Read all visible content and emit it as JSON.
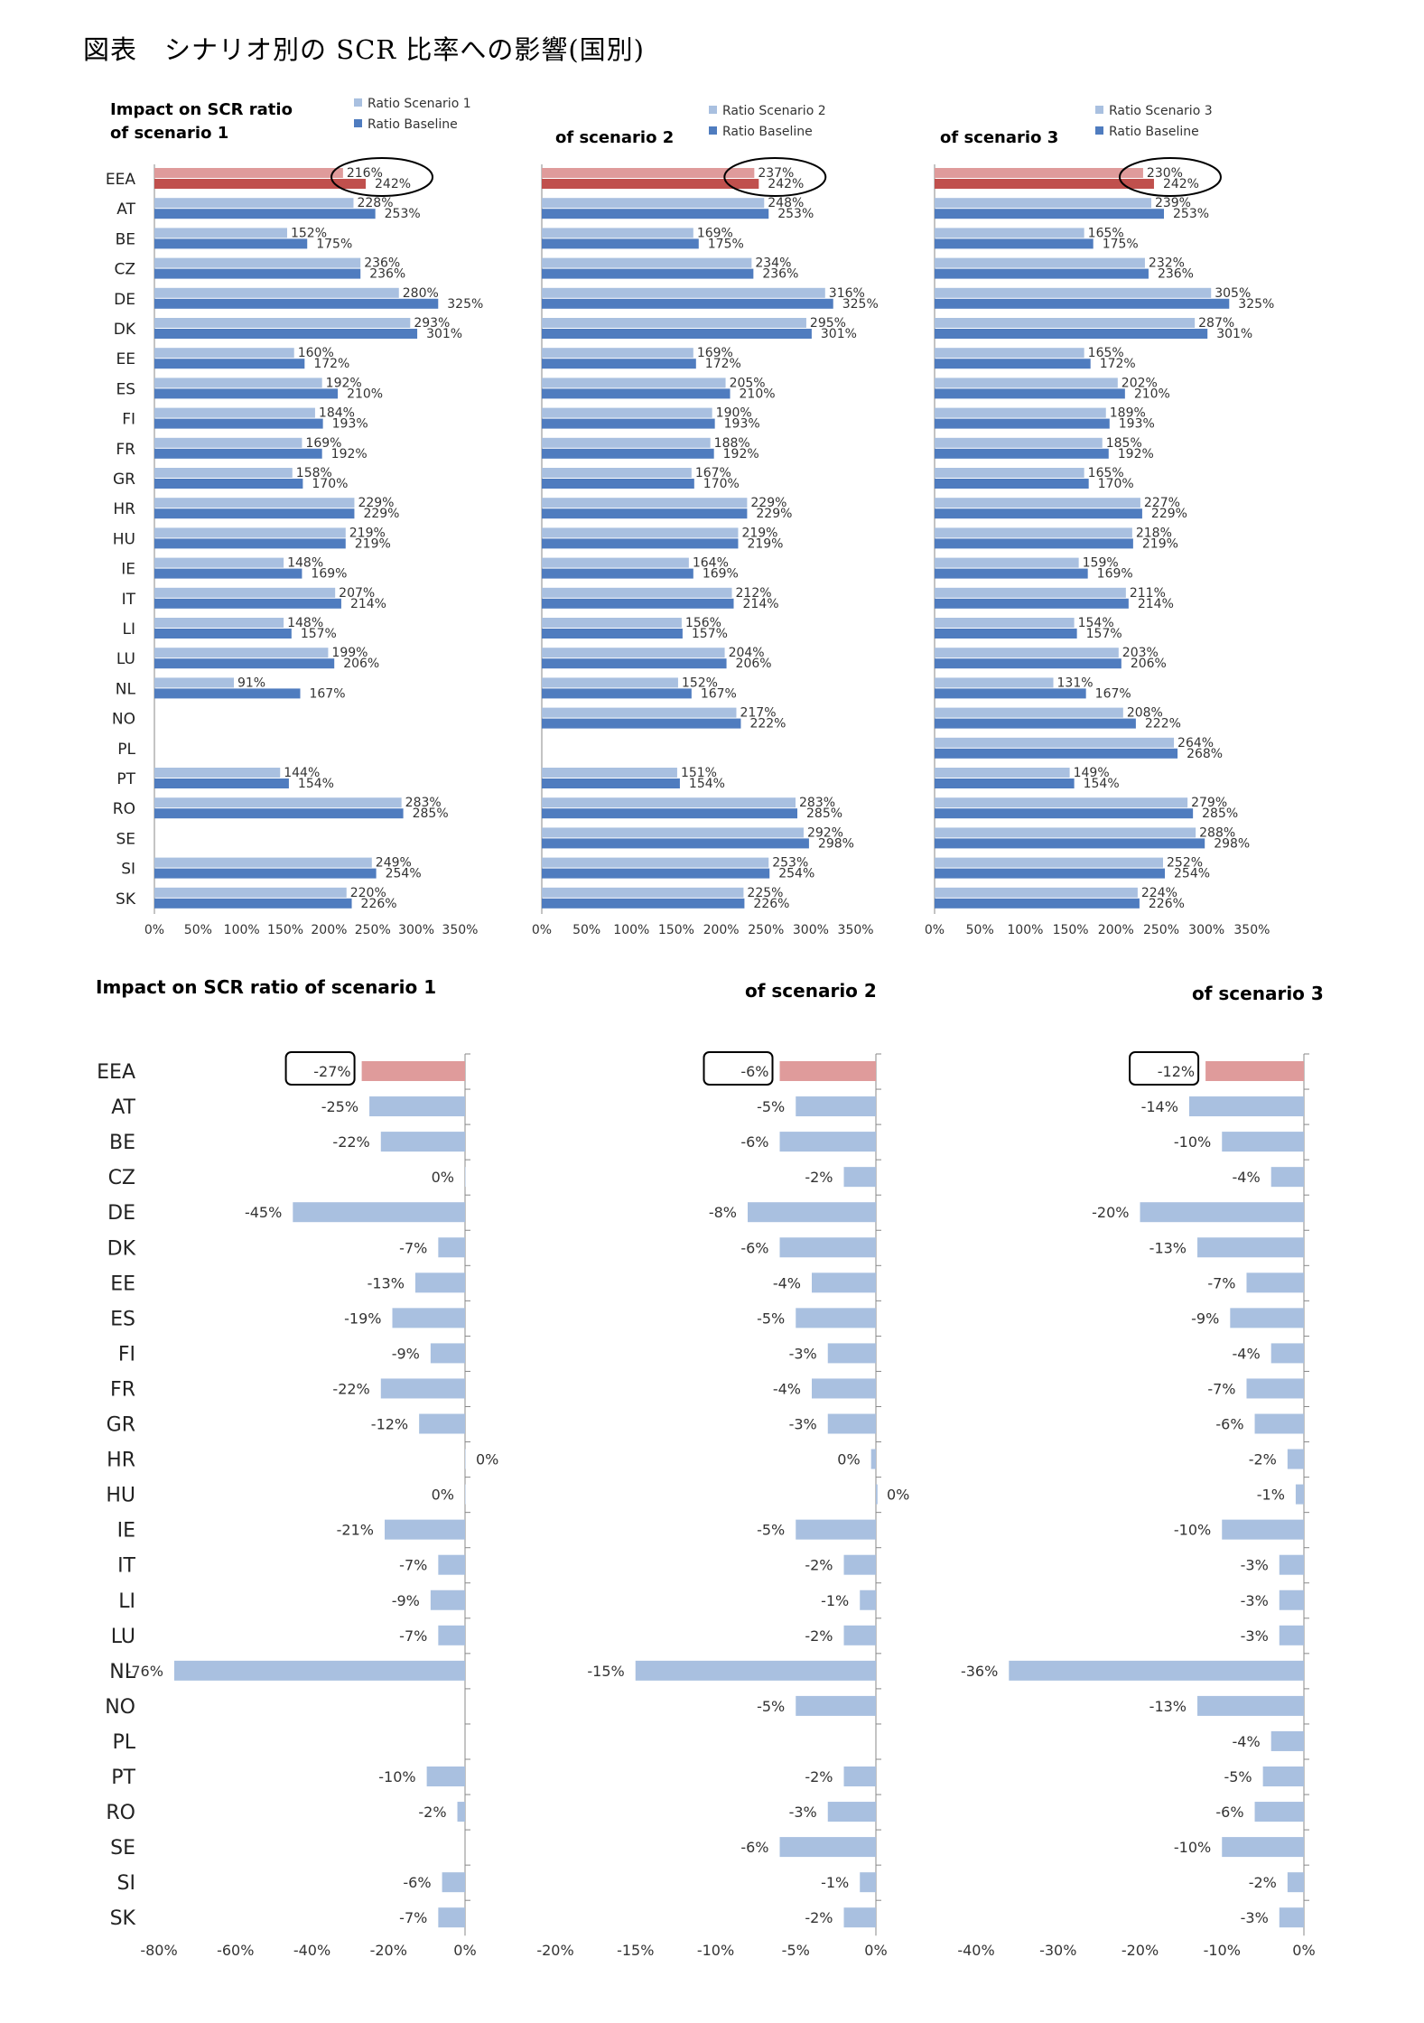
{
  "figure_title": "図表　シナリオ別の SCR 比率への影響(国別)",
  "colors": {
    "scenario_bar": "#a9c0e0",
    "baseline_bar": "#4f7cbf",
    "eea_scenario_bar": "#df9b9b",
    "eea_baseline_bar": "#c0504d",
    "impact_bar": "#a9c0e0",
    "impact_eea_bar": "#df9b9b"
  },
  "chart_data": [
    {
      "type": "bar",
      "orientation": "horizontal",
      "title_line1": "Impact on SCR ratio",
      "title_line2": "of scenario 1",
      "legend": [
        "Ratio Scenario 1",
        "Ratio Baseline"
      ],
      "xlim": [
        0,
        350
      ],
      "x_ticks": [
        "0%",
        "50%",
        "100%",
        "150%",
        "200%",
        "250%",
        "300%",
        "350%"
      ],
      "categories": [
        "EEA",
        "AT",
        "BE",
        "CZ",
        "DE",
        "DK",
        "EE",
        "ES",
        "FI",
        "FR",
        "GR",
        "HR",
        "HU",
        "IE",
        "IT",
        "LI",
        "LU",
        "NL",
        "NO",
        "PL",
        "PT",
        "RO",
        "SE",
        "SI",
        "SK"
      ],
      "series": [
        {
          "name": "Ratio Scenario 1",
          "values": [
            216,
            228,
            152,
            236,
            280,
            293,
            160,
            192,
            184,
            169,
            158,
            229,
            219,
            148,
            207,
            148,
            199,
            91,
            null,
            null,
            144,
            283,
            null,
            249,
            220
          ],
          "labels": [
            "216%",
            "228%",
            "152%",
            "236%",
            "280%",
            "293%",
            "160%",
            "192%",
            "184%",
            "169%",
            "158%",
            "229%",
            "219%",
            "148%",
            "207%",
            "148%",
            "199%",
            "91%",
            null,
            null,
            "144%",
            "283%",
            null,
            "249%",
            "220%"
          ]
        },
        {
          "name": "Ratio Baseline",
          "values": [
            242,
            253,
            175,
            236,
            325,
            301,
            172,
            210,
            193,
            192,
            170,
            229,
            219,
            169,
            214,
            157,
            206,
            167,
            null,
            null,
            154,
            285,
            null,
            254,
            226
          ],
          "labels": [
            "242%",
            "253%",
            "175%",
            "236%",
            "325%",
            "301%",
            "172%",
            "210%",
            "193%",
            "192%",
            "170%",
            "229%",
            "219%",
            "169%",
            "214%",
            "157%",
            "206%",
            "167%",
            null,
            null,
            "154%",
            "285%",
            null,
            "254%",
            "226%"
          ]
        }
      ],
      "highlight": "EEA"
    },
    {
      "type": "bar",
      "orientation": "horizontal",
      "title_line1": "",
      "title_line2": "of scenario 2",
      "legend": [
        "Ratio Scenario 2",
        "Ratio Baseline"
      ],
      "xlim": [
        0,
        350
      ],
      "x_ticks": [
        "0%",
        "50%",
        "100%",
        "150%",
        "200%",
        "250%",
        "300%",
        "350%"
      ],
      "categories": [
        "EEA",
        "AT",
        "BE",
        "CZ",
        "DE",
        "DK",
        "EE",
        "ES",
        "FI",
        "FR",
        "GR",
        "HR",
        "HU",
        "IE",
        "IT",
        "LI",
        "LU",
        "NL",
        "NO",
        "PL",
        "PT",
        "RO",
        "SE",
        "SI",
        "SK"
      ],
      "series": [
        {
          "name": "Ratio Scenario 2",
          "values": [
            237,
            248,
            169,
            234,
            316,
            295,
            169,
            205,
            190,
            188,
            167,
            229,
            219,
            164,
            212,
            156,
            204,
            152,
            217,
            null,
            151,
            283,
            292,
            253,
            225
          ],
          "labels": [
            "237%",
            "248%",
            "169%",
            "234%",
            "316%",
            "295%",
            "169%",
            "205%",
            "190%",
            "188%",
            "167%",
            "229%",
            "219%",
            "164%",
            "212%",
            "156%",
            "204%",
            "152%",
            "217%",
            null,
            "151%",
            "283%",
            "292%",
            "253%",
            "225%"
          ]
        },
        {
          "name": "Ratio Baseline",
          "values": [
            242,
            253,
            175,
            236,
            325,
            301,
            172,
            210,
            193,
            192,
            170,
            229,
            219,
            169,
            214,
            157,
            206,
            167,
            222,
            null,
            154,
            285,
            298,
            254,
            226
          ],
          "labels": [
            "242%",
            "253%",
            "175%",
            "236%",
            "325%",
            "301%",
            "172%",
            "210%",
            "193%",
            "192%",
            "170%",
            "229%",
            "219%",
            "169%",
            "214%",
            "157%",
            "206%",
            "167%",
            "222%",
            null,
            "154%",
            "285%",
            "298%",
            "254%",
            "226%"
          ]
        }
      ],
      "highlight": "EEA"
    },
    {
      "type": "bar",
      "orientation": "horizontal",
      "title_line1": "",
      "title_line2": "of scenario 3",
      "legend": [
        "Ratio Scenario 3",
        "Ratio Baseline"
      ],
      "xlim": [
        0,
        350
      ],
      "x_ticks": [
        "0%",
        "50%",
        "100%",
        "150%",
        "200%",
        "250%",
        "300%",
        "350%"
      ],
      "categories": [
        "EEA",
        "AT",
        "BE",
        "CZ",
        "DE",
        "DK",
        "EE",
        "ES",
        "FI",
        "FR",
        "GR",
        "HR",
        "HU",
        "IE",
        "IT",
        "LI",
        "LU",
        "NL",
        "NO",
        "PL",
        "PT",
        "RO",
        "SE",
        "SI",
        "SK"
      ],
      "series": [
        {
          "name": "Ratio Scenario 3",
          "values": [
            230,
            239,
            165,
            232,
            305,
            287,
            165,
            202,
            189,
            185,
            165,
            227,
            218,
            159,
            211,
            154,
            203,
            131,
            208,
            264,
            149,
            279,
            288,
            252,
            224
          ],
          "labels": [
            "230%",
            "239%",
            "165%",
            "232%",
            "305%",
            "287%",
            "165%",
            "202%",
            "189%",
            "185%",
            "165%",
            "227%",
            "218%",
            "159%",
            "211%",
            "154%",
            "203%",
            "131%",
            "208%",
            "264%",
            "149%",
            "279%",
            "288%",
            "252%",
            "224%"
          ]
        },
        {
          "name": "Ratio Baseline",
          "values": [
            242,
            253,
            175,
            236,
            325,
            301,
            172,
            210,
            193,
            192,
            170,
            229,
            219,
            169,
            214,
            157,
            206,
            167,
            222,
            268,
            154,
            285,
            298,
            254,
            226
          ],
          "labels": [
            "242%",
            "253%",
            "175%",
            "236%",
            "325%",
            "301%",
            "172%",
            "210%",
            "193%",
            "192%",
            "170%",
            "229%",
            "219%",
            "169%",
            "214%",
            "157%",
            "206%",
            "167%",
            "222%",
            "268%",
            "154%",
            "285%",
            "298%",
            "254%",
            "226%"
          ]
        }
      ],
      "highlight": "EEA"
    },
    {
      "type": "bar",
      "orientation": "horizontal",
      "title": "Impact on SCR ratio of scenario 1",
      "xlim": [
        -80,
        0
      ],
      "x_ticks": [
        "-80%",
        "-60%",
        "-40%",
        "-20%",
        "0%"
      ],
      "categories": [
        "EEA",
        "AT",
        "BE",
        "CZ",
        "DE",
        "DK",
        "EE",
        "ES",
        "FI",
        "FR",
        "GR",
        "HR",
        "HU",
        "IE",
        "IT",
        "LI",
        "LU",
        "NL",
        "NO",
        "PL",
        "PT",
        "RO",
        "SE",
        "SI",
        "SK"
      ],
      "values": [
        -27,
        -25,
        -22,
        0,
        -45,
        -7,
        -13,
        -19,
        -9,
        -22,
        -12,
        0,
        0,
        -21,
        -7,
        -9,
        -7,
        -76,
        null,
        null,
        -10,
        -2,
        null,
        -6,
        -7
      ],
      "labels": [
        "-27%",
        "-25%",
        "-22%",
        "0%",
        "-45%",
        "-7%",
        "-13%",
        "-19%",
        "-9%",
        "-22%",
        "-12%",
        "0%",
        "0%",
        "-21%",
        "-7%",
        "-9%",
        "-7%",
        "-76%",
        null,
        null,
        "-10%",
        "-2%",
        null,
        "-6%",
        "-7%"
      ],
      "highlight": "EEA"
    },
    {
      "type": "bar",
      "orientation": "horizontal",
      "title": "of scenario 2",
      "xlim": [
        -20,
        0
      ],
      "x_ticks": [
        "-20%",
        "-15%",
        "-10%",
        "-5%",
        "0%"
      ],
      "categories": [
        "EEA",
        "AT",
        "BE",
        "CZ",
        "DE",
        "DK",
        "EE",
        "ES",
        "FI",
        "FR",
        "GR",
        "HR",
        "HU",
        "IE",
        "IT",
        "LI",
        "LU",
        "NL",
        "NO",
        "PL",
        "PT",
        "RO",
        "SE",
        "SI",
        "SK"
      ],
      "values": [
        -6,
        -5,
        -6,
        -2,
        -8,
        -6,
        -4,
        -5,
        -3,
        -4,
        -3,
        -0.3,
        0.1,
        -5,
        -2,
        -1,
        -2,
        -15,
        -5,
        null,
        -2,
        -3,
        -6,
        -1,
        -2
      ],
      "labels": [
        "-6%",
        "-5%",
        "-6%",
        "-2%",
        "-8%",
        "-6%",
        "-4%",
        "-5%",
        "-3%",
        "-4%",
        "-3%",
        "0%",
        "0%",
        "-5%",
        "-2%",
        "-1%",
        "-2%",
        "-15%",
        "-5%",
        null,
        "-2%",
        "-3%",
        "-6%",
        "-1%",
        "-2%"
      ],
      "highlight": "EEA"
    },
    {
      "type": "bar",
      "orientation": "horizontal",
      "title": "of scenario 3",
      "xlim": [
        -40,
        0
      ],
      "x_ticks": [
        "-40%",
        "-30%",
        "-20%",
        "-10%",
        "0%"
      ],
      "categories": [
        "EEA",
        "AT",
        "BE",
        "CZ",
        "DE",
        "DK",
        "EE",
        "ES",
        "FI",
        "FR",
        "GR",
        "HR",
        "HU",
        "IE",
        "IT",
        "LI",
        "LU",
        "NL",
        "NO",
        "PL",
        "PT",
        "RO",
        "SE",
        "SI",
        "SK"
      ],
      "values": [
        -12,
        -14,
        -10,
        -4,
        -20,
        -13,
        -7,
        -9,
        -4,
        -7,
        -6,
        -2,
        -1,
        -10,
        -3,
        -3,
        -3,
        -36,
        -13,
        -4,
        -5,
        -6,
        -10,
        -2,
        -3
      ],
      "labels": [
        "-12%",
        "-14%",
        "-10%",
        "-4%",
        "-20%",
        "-13%",
        "-7%",
        "-9%",
        "-4%",
        "-7%",
        "-6%",
        "-2%",
        "-1%",
        "-10%",
        "-3%",
        "-3%",
        "-3%",
        "-36%",
        "-13%",
        "-4%",
        "-5%",
        "-6%",
        "-10%",
        "-2%",
        "-3%"
      ],
      "highlight": "EEA"
    }
  ]
}
